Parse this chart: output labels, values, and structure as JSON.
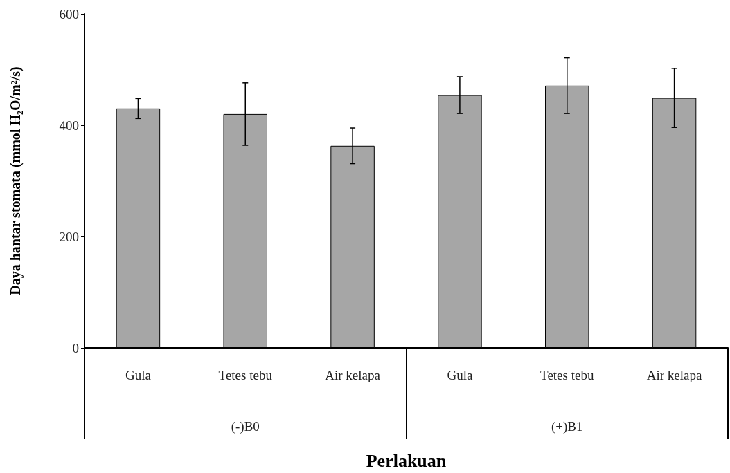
{
  "chart_data": {
    "type": "bar",
    "xlabel": "Perlakuan",
    "ylabel": "Daya hantar stomata (mmol H₂O/m²/s)",
    "categories": [
      "Gula",
      "Tetes tebu",
      "Air kelapa",
      "Gula",
      "Tetes tebu",
      "Air kelapa"
    ],
    "series": [
      {
        "color": "#a6a6a6",
        "values": [
          430,
          420,
          363,
          454,
          471,
          449
        ],
        "errors": [
          18,
          56,
          32,
          33,
          50,
          53
        ]
      }
    ],
    "annotations": [
      "(-)B0",
      "(+)B1"
    ],
    "ylim": [
      0,
      600
    ],
    "yticks": [
      0,
      200,
      400,
      600
    ],
    "grid": false
  }
}
